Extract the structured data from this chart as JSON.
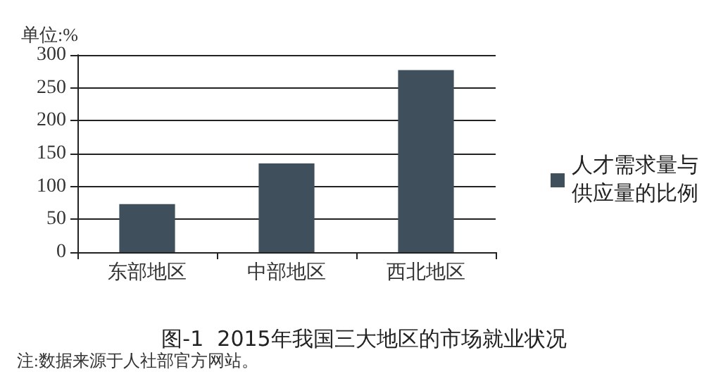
{
  "chart_data": {
    "type": "bar",
    "title": "图-1  2015年我国三大地区的市场就业状况",
    "ylabel": "单位:%",
    "categories": [
      "东部地区",
      "中部地区",
      "西北地区"
    ],
    "series": [
      {
        "name": "人才需求量与供应量的比例",
        "color": "#3f4f5c",
        "values": [
          73,
          135,
          277
        ]
      }
    ],
    "ylim": [
      0,
      300
    ],
    "yticks": [
      0,
      50,
      100,
      150,
      200,
      250,
      300
    ],
    "grid": "y",
    "legend": "right",
    "annotations": [
      "注:数据来源于人社部官方网站。"
    ]
  }
}
